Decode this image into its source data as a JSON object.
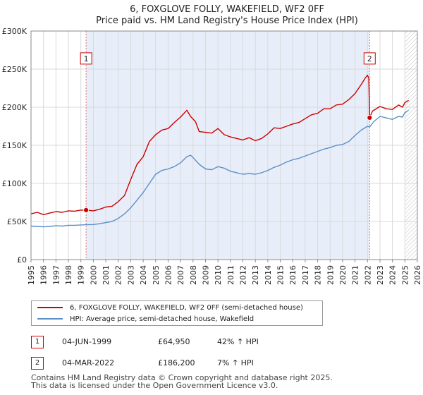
{
  "chart_data": {
    "type": "line",
    "title": "6, FOXGLOVE FOLLY, WAKEFIELD, WF2 0FF",
    "subtitle": "Price paid vs. HM Land Registry's House Price Index (HPI)",
    "xlim": [
      1995,
      2026
    ],
    "ylim": [
      0,
      300000
    ],
    "x_ticks": [
      "1995",
      "1996",
      "1997",
      "1998",
      "1999",
      "2000",
      "2001",
      "2002",
      "2003",
      "2004",
      "2005",
      "2006",
      "2007",
      "2008",
      "2009",
      "2010",
      "2011",
      "2012",
      "2013",
      "2014",
      "2015",
      "2016",
      "2017",
      "2018",
      "2019",
      "2020",
      "2021",
      "2022",
      "2023",
      "2024",
      "2025",
      "2026"
    ],
    "y_ticks": [
      {
        "value": 0,
        "label": "£0"
      },
      {
        "value": 50000,
        "label": "£50K"
      },
      {
        "value": 100000,
        "label": "£100K"
      },
      {
        "value": 150000,
        "label": "£150K"
      },
      {
        "value": 200000,
        "label": "£200K"
      },
      {
        "value": 250000,
        "label": "£250K"
      },
      {
        "value": 300000,
        "label": "£300K"
      }
    ],
    "grid": true,
    "shaded_span": [
      1999.42,
      2022.17
    ],
    "hatched_from": 2025.0,
    "series": [
      {
        "name": "6, FOXGLOVE FOLLY, WAKEFIELD, WF2 0FF (semi-detached house)",
        "color": "#cc0000",
        "points": [
          [
            1995.0,
            60000
          ],
          [
            1995.5,
            62000
          ],
          [
            1996.0,
            59000
          ],
          [
            1996.5,
            61000
          ],
          [
            1997.0,
            63000
          ],
          [
            1997.5,
            62000
          ],
          [
            1998.0,
            64000
          ],
          [
            1998.5,
            63500
          ],
          [
            1999.0,
            65000
          ],
          [
            1999.42,
            64950
          ],
          [
            2000.0,
            64000
          ],
          [
            2000.5,
            66000
          ],
          [
            2001.0,
            69000
          ],
          [
            2001.5,
            70000
          ],
          [
            2002.0,
            76000
          ],
          [
            2002.5,
            84000
          ],
          [
            2003.0,
            105000
          ],
          [
            2003.5,
            125000
          ],
          [
            2004.0,
            135000
          ],
          [
            2004.5,
            155000
          ],
          [
            2005.0,
            164000
          ],
          [
            2005.5,
            170000
          ],
          [
            2006.0,
            172000
          ],
          [
            2006.5,
            180000
          ],
          [
            2007.0,
            187000
          ],
          [
            2007.5,
            196000
          ],
          [
            2007.8,
            188000
          ],
          [
            2008.2,
            181000
          ],
          [
            2008.5,
            168000
          ],
          [
            2009.0,
            167000
          ],
          [
            2009.5,
            166000
          ],
          [
            2010.0,
            172000
          ],
          [
            2010.5,
            164000
          ],
          [
            2011.0,
            161000
          ],
          [
            2011.5,
            159000
          ],
          [
            2012.0,
            157000
          ],
          [
            2012.5,
            160000
          ],
          [
            2013.0,
            156000
          ],
          [
            2013.5,
            159000
          ],
          [
            2014.0,
            165000
          ],
          [
            2014.5,
            173000
          ],
          [
            2015.0,
            172000
          ],
          [
            2015.5,
            175000
          ],
          [
            2016.0,
            178000
          ],
          [
            2016.5,
            180000
          ],
          [
            2017.0,
            185000
          ],
          [
            2017.5,
            190000
          ],
          [
            2018.0,
            192000
          ],
          [
            2018.5,
            198000
          ],
          [
            2019.0,
            198000
          ],
          [
            2019.5,
            203000
          ],
          [
            2020.0,
            204000
          ],
          [
            2020.5,
            210000
          ],
          [
            2021.0,
            218000
          ],
          [
            2021.5,
            230000
          ],
          [
            2021.8,
            238000
          ],
          [
            2022.0,
            242000
          ],
          [
            2022.1,
            238000
          ],
          [
            2022.17,
            186200
          ],
          [
            2022.4,
            195000
          ],
          [
            2022.8,
            199000
          ],
          [
            2023.0,
            201000
          ],
          [
            2023.5,
            198000
          ],
          [
            2024.0,
            197000
          ],
          [
            2024.5,
            203000
          ],
          [
            2024.8,
            200000
          ],
          [
            2025.0,
            206000
          ],
          [
            2025.3,
            209000
          ]
        ]
      },
      {
        "name": "HPI: Average price, semi-detached house, Wakefield",
        "color": "#5b8fc9",
        "points": [
          [
            1995.0,
            44000
          ],
          [
            1995.5,
            43500
          ],
          [
            1996.0,
            43000
          ],
          [
            1996.5,
            43500
          ],
          [
            1997.0,
            44500
          ],
          [
            1997.5,
            44000
          ],
          [
            1998.0,
            45000
          ],
          [
            1998.5,
            45000
          ],
          [
            1999.0,
            45500
          ],
          [
            1999.42,
            45700
          ],
          [
            2000.0,
            46000
          ],
          [
            2000.5,
            47000
          ],
          [
            2001.0,
            48500
          ],
          [
            2001.5,
            50000
          ],
          [
            2002.0,
            54000
          ],
          [
            2002.5,
            60000
          ],
          [
            2003.0,
            68000
          ],
          [
            2003.5,
            78000
          ],
          [
            2004.0,
            88000
          ],
          [
            2004.5,
            100000
          ],
          [
            2005.0,
            112000
          ],
          [
            2005.5,
            117000
          ],
          [
            2006.0,
            119000
          ],
          [
            2006.5,
            122000
          ],
          [
            2007.0,
            127000
          ],
          [
            2007.5,
            135000
          ],
          [
            2007.8,
            137000
          ],
          [
            2008.0,
            134000
          ],
          [
            2008.5,
            125000
          ],
          [
            2009.0,
            119000
          ],
          [
            2009.5,
            118000
          ],
          [
            2010.0,
            122000
          ],
          [
            2010.5,
            120000
          ],
          [
            2011.0,
            116000
          ],
          [
            2011.5,
            114000
          ],
          [
            2012.0,
            112000
          ],
          [
            2012.5,
            113000
          ],
          [
            2013.0,
            112000
          ],
          [
            2013.5,
            114000
          ],
          [
            2014.0,
            117000
          ],
          [
            2014.5,
            121000
          ],
          [
            2015.0,
            124000
          ],
          [
            2015.5,
            128000
          ],
          [
            2016.0,
            131000
          ],
          [
            2016.5,
            133000
          ],
          [
            2017.0,
            136000
          ],
          [
            2017.5,
            139000
          ],
          [
            2018.0,
            142000
          ],
          [
            2018.5,
            145000
          ],
          [
            2019.0,
            147000
          ],
          [
            2019.5,
            150000
          ],
          [
            2020.0,
            151000
          ],
          [
            2020.5,
            155000
          ],
          [
            2021.0,
            163000
          ],
          [
            2021.5,
            170000
          ],
          [
            2022.0,
            175000
          ],
          [
            2022.17,
            174000
          ],
          [
            2022.5,
            181000
          ],
          [
            2023.0,
            188000
          ],
          [
            2023.5,
            186000
          ],
          [
            2024.0,
            184000
          ],
          [
            2024.5,
            188000
          ],
          [
            2024.8,
            187000
          ],
          [
            2025.0,
            193000
          ],
          [
            2025.3,
            196000
          ]
        ]
      }
    ],
    "markers": [
      {
        "label": "1",
        "x": 1999.42,
        "y": 64950,
        "box_y": 264000
      },
      {
        "label": "2",
        "x": 2022.17,
        "y": 186200,
        "box_y": 264000
      }
    ]
  },
  "legend": {
    "items": [
      {
        "label": "6, FOXGLOVE FOLLY, WAKEFIELD, WF2 0FF (semi-detached house)",
        "color": "#cc0000"
      },
      {
        "label": "HPI: Average price, semi-detached house, Wakefield",
        "color": "#5b8fc9"
      }
    ]
  },
  "sales": [
    {
      "num": "1",
      "date": "04-JUN-1999",
      "price": "£64,950",
      "hpi": "42% ↑ HPI"
    },
    {
      "num": "2",
      "date": "04-MAR-2022",
      "price": "£186,200",
      "hpi": "7% ↑ HPI"
    }
  ],
  "footer": {
    "line1": "Contains HM Land Registry data © Crown copyright and database right 2025.",
    "line2": "This data is licensed under the Open Government Licence v3.0."
  }
}
